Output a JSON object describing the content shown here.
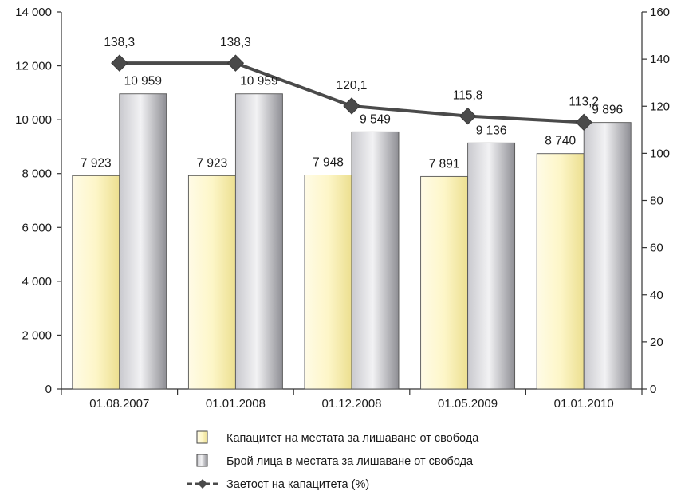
{
  "chart_data": {
    "type": "bar",
    "categories": [
      "01.08.2007",
      "01.01.2008",
      "01.12.2008",
      "01.05.2009",
      "01.01.2010"
    ],
    "series": [
      {
        "name": "Капацитет на местата за лишаване от свобода",
        "kind": "bar",
        "axis": "left",
        "values": [
          7923,
          7923,
          7948,
          7891,
          8740
        ],
        "labels": [
          "7 923",
          "7 923",
          "7 948",
          "7 891",
          "8 740"
        ],
        "color": "#f7eeb0"
      },
      {
        "name": "Брой лица в местата за лишаване от свобода",
        "kind": "bar",
        "axis": "left",
        "values": [
          10959,
          10959,
          9549,
          9136,
          9896
        ],
        "labels": [
          "10 959",
          "10 959",
          "9 549",
          "9 136",
          "9 896"
        ],
        "color": "#a9a9ae"
      },
      {
        "name": "Заетост на капацитета (%)",
        "kind": "line",
        "axis": "right",
        "values": [
          138.3,
          138.3,
          120.1,
          115.8,
          113.2
        ],
        "labels": [
          "138,3",
          "138,3",
          "120,1",
          "115,8",
          "113,2"
        ],
        "color": "#4a4a4a"
      }
    ],
    "ylim_left": [
      0,
      14000
    ],
    "yticks_left": [
      "0",
      "2 000",
      "4 000",
      "6 000",
      "8 000",
      "10 000",
      "12 000",
      "14 000"
    ],
    "ylim_right": [
      0,
      160
    ],
    "yticks_right": [
      "0",
      "20",
      "40",
      "60",
      "80",
      "100",
      "120",
      "140",
      "160"
    ],
    "grid": false,
    "legend_position": "bottom-center"
  }
}
